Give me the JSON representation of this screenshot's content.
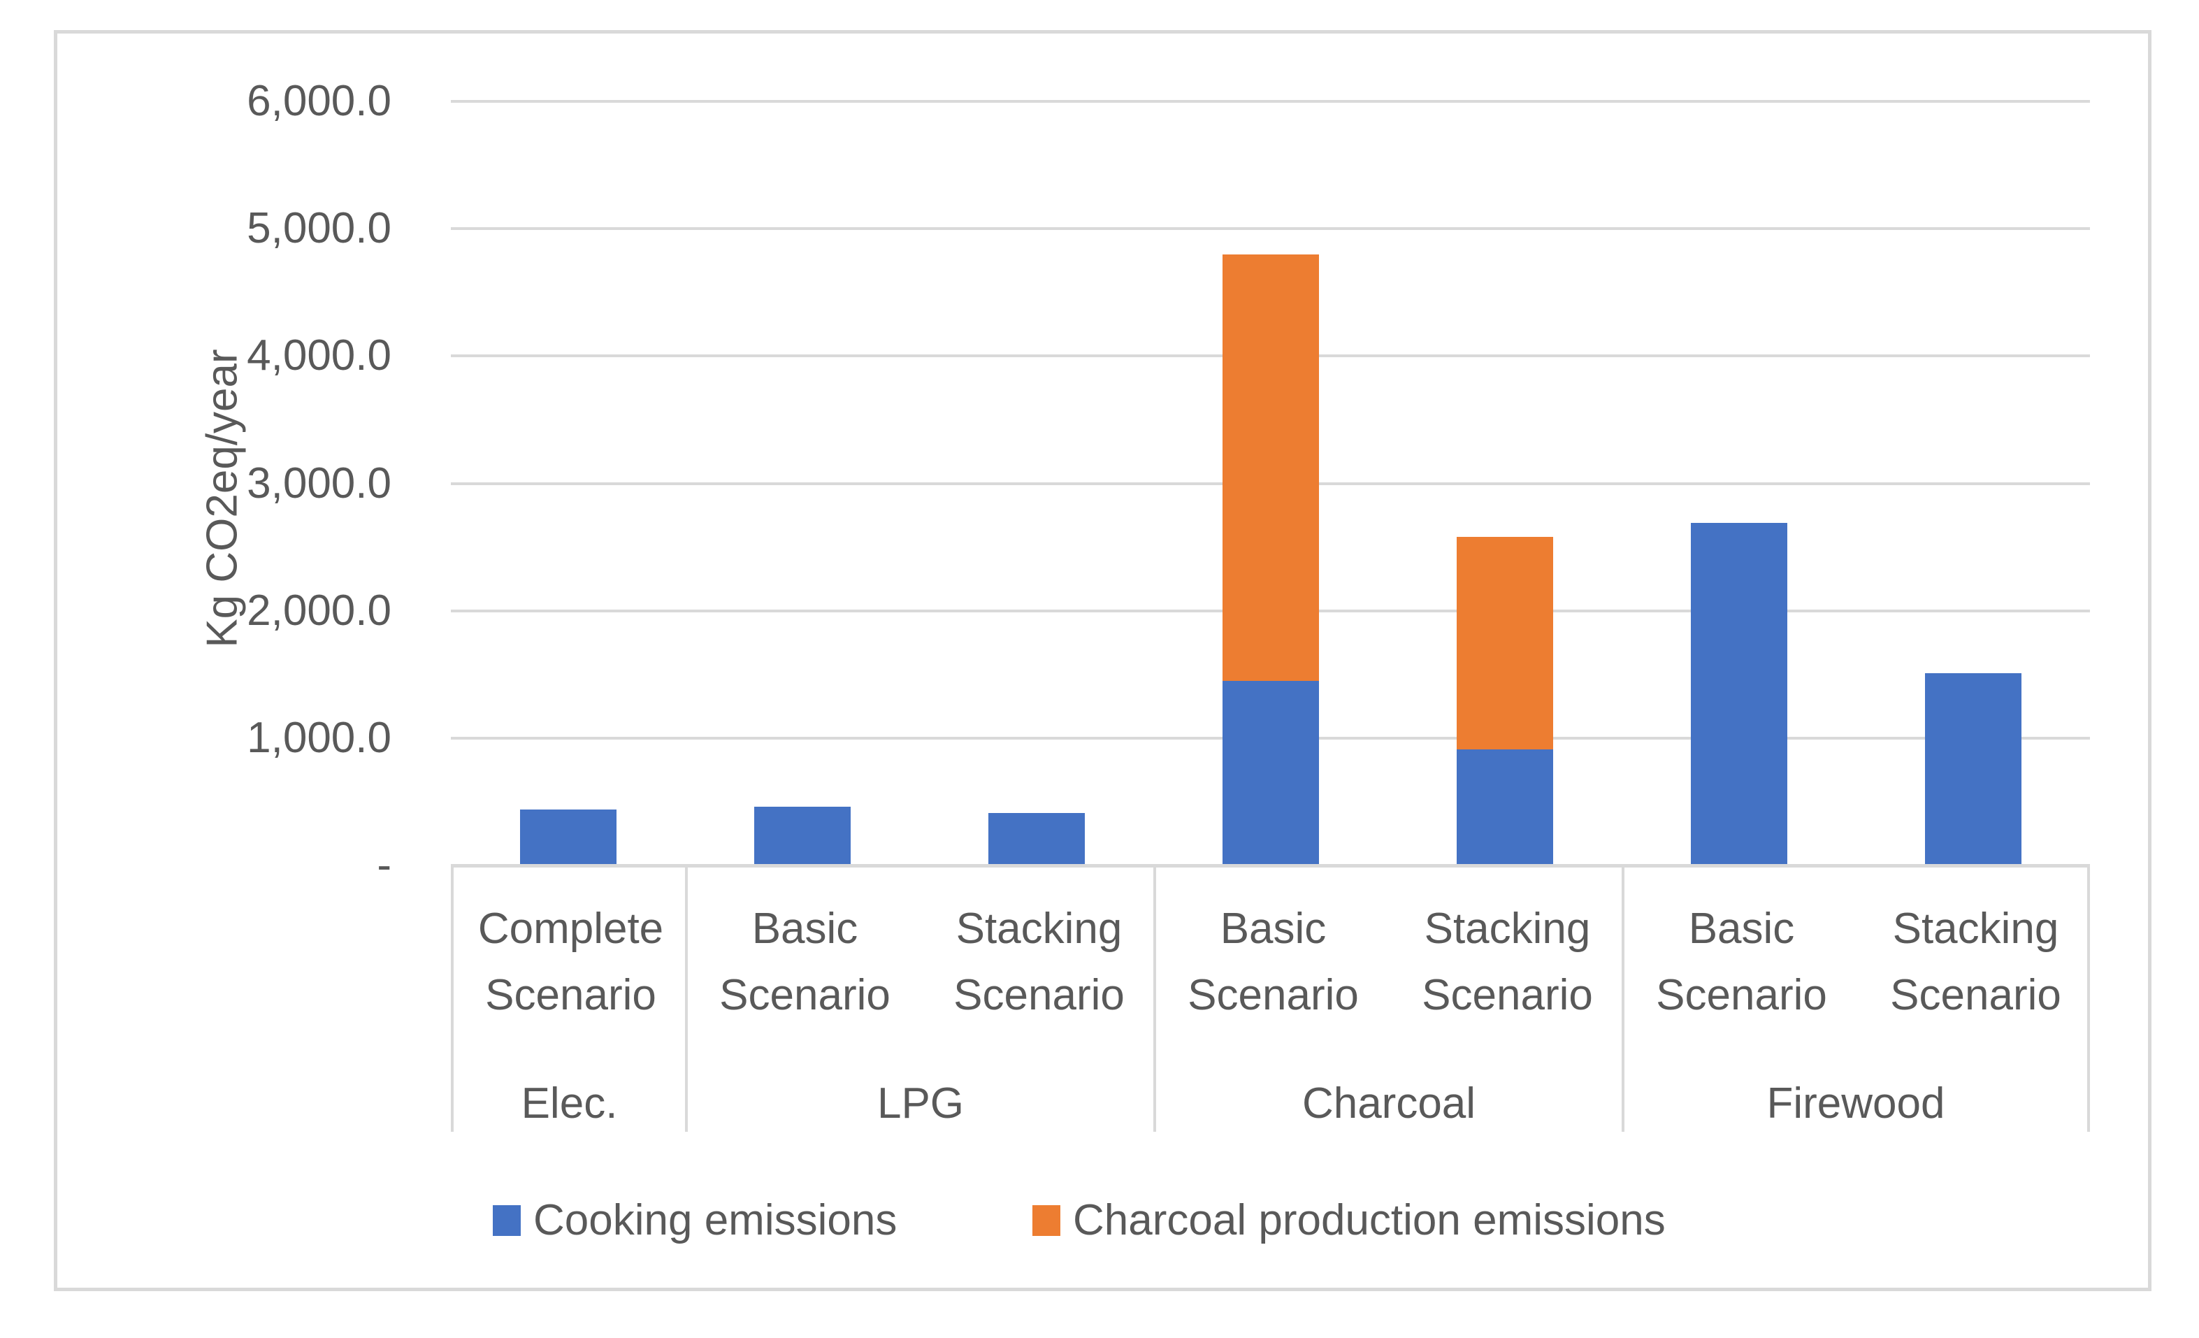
{
  "chart_data": {
    "type": "bar",
    "stacked": true,
    "title": "",
    "ylabel": "Kg CO2eq/year",
    "ylim": [
      0,
      6000
    ],
    "ytick_interval": 1000,
    "ytick_labels": [
      "-",
      "1,000.0",
      "2,000.0",
      "3,000.0",
      "4,000.0",
      "5,000.0",
      "6,000.0"
    ],
    "grid": true,
    "legend_position": "bottom",
    "series_names": [
      "Cooking emissions",
      "Charcoal production emissions"
    ],
    "groups": [
      {
        "fuel": "Elec.",
        "bars": [
          {
            "scenario": "Complete Scenario",
            "cooking": 440,
            "charcoal_production": 0
          }
        ]
      },
      {
        "fuel": "LPG",
        "bars": [
          {
            "scenario": "Basic Scenario",
            "cooking": 460,
            "charcoal_production": 0
          },
          {
            "scenario": "Stacking Scenario",
            "cooking": 410,
            "charcoal_production": 0
          }
        ]
      },
      {
        "fuel": "Charcoal",
        "bars": [
          {
            "scenario": "Basic Scenario",
            "cooking": 1450,
            "charcoal_production": 3350
          },
          {
            "scenario": "Stacking Scenario",
            "cooking": 910,
            "charcoal_production": 1670
          }
        ]
      },
      {
        "fuel": "Firewood",
        "bars": [
          {
            "scenario": "Basic Scenario",
            "cooking": 2690,
            "charcoal_production": 0
          },
          {
            "scenario": "Stacking Scenario",
            "cooking": 1510,
            "charcoal_production": 0
          }
        ]
      }
    ],
    "legend": [
      {
        "label": "Cooking emissions",
        "color": "#4472C4"
      },
      {
        "label": "Charcoal production emissions",
        "color": "#ED7D31"
      }
    ]
  },
  "colors": {
    "cooking_series": "#4472C4",
    "charcoal_production_series": "#ED7D31",
    "text": "#595959",
    "gridline": "#D9D9D9",
    "frame_border": "#D9D9D9"
  }
}
